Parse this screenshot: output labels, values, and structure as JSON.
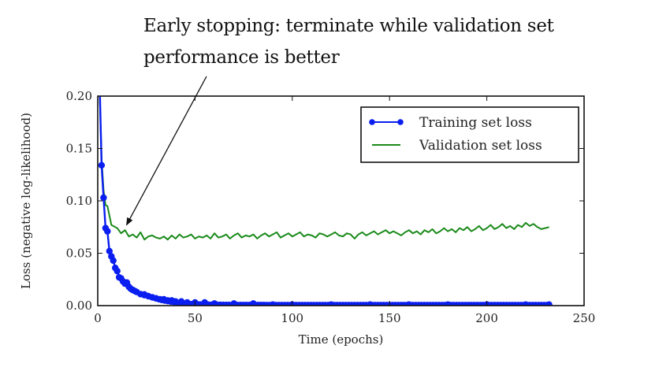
{
  "chart_data": {
    "type": "line",
    "title": "",
    "annotation": {
      "line1": "Early stopping: terminate while validation set",
      "line2": "performance is better",
      "arrow_target": {
        "x": 14,
        "y": 0.074
      }
    },
    "xlabel": "Time (epochs)",
    "ylabel": "Loss (negative log-likelihood)",
    "xlim": [
      0,
      250
    ],
    "ylim": [
      0.0,
      0.2
    ],
    "xticks": [
      0,
      50,
      100,
      150,
      200,
      250
    ],
    "xtick_labels": [
      "0",
      "50",
      "100",
      "150",
      "200",
      "250"
    ],
    "yticks": [
      0.0,
      0.05,
      0.1,
      0.15,
      0.2
    ],
    "ytick_labels": [
      "0.00",
      "0.05",
      "0.10",
      "0.15",
      "0.20"
    ],
    "grid": false,
    "legend": {
      "position": "top-right"
    },
    "series": [
      {
        "name": "Training set loss",
        "color": "#0a1ef0",
        "marker": "circle",
        "x": [
          1,
          2,
          3,
          4,
          5,
          6,
          7,
          8,
          9,
          10,
          11,
          12,
          13,
          14,
          15,
          16,
          17,
          18,
          19,
          20,
          22,
          24,
          26,
          28,
          30,
          32,
          34,
          36,
          38,
          40,
          43,
          46,
          50,
          55,
          60,
          70,
          80,
          90,
          100,
          120,
          140,
          160,
          180,
          200,
          220,
          232
        ],
        "values": [
          0.21,
          0.134,
          0.103,
          0.074,
          0.071,
          0.052,
          0.047,
          0.043,
          0.036,
          0.033,
          0.027,
          0.026,
          0.023,
          0.021,
          0.022,
          0.018,
          0.016,
          0.015,
          0.014,
          0.013,
          0.011,
          0.01,
          0.009,
          0.008,
          0.007,
          0.006,
          0.006,
          0.005,
          0.005,
          0.004,
          0.004,
          0.003,
          0.003,
          0.003,
          0.002,
          0.002,
          0.002,
          0.001,
          0.001,
          0.001,
          0.001,
          0.001,
          0.001,
          0.001,
          0.001,
          0.001
        ]
      },
      {
        "name": "Validation set loss",
        "color": "#1a8a1a",
        "marker": "none",
        "x": [
          1,
          2,
          3,
          4,
          5,
          6,
          7,
          8,
          10,
          12,
          14,
          16,
          18,
          20,
          22,
          24,
          26,
          28,
          30,
          32,
          34,
          36,
          38,
          40,
          42,
          44,
          46,
          48,
          50,
          52,
          54,
          56,
          58,
          60,
          62,
          64,
          66,
          68,
          70,
          72,
          74,
          76,
          78,
          80,
          82,
          84,
          86,
          88,
          90,
          92,
          94,
          96,
          98,
          100,
          102,
          104,
          106,
          108,
          110,
          112,
          114,
          116,
          118,
          120,
          122,
          124,
          126,
          128,
          130,
          132,
          134,
          136,
          138,
          140,
          142,
          144,
          146,
          148,
          150,
          152,
          154,
          156,
          158,
          160,
          162,
          164,
          166,
          168,
          170,
          172,
          174,
          176,
          178,
          180,
          182,
          184,
          186,
          188,
          190,
          192,
          194,
          196,
          198,
          200,
          202,
          204,
          206,
          208,
          210,
          212,
          214,
          216,
          218,
          220,
          222,
          224,
          226,
          228,
          230,
          232
        ],
        "values": [
          0.2,
          0.14,
          0.11,
          0.096,
          0.095,
          0.086,
          0.077,
          0.076,
          0.074,
          0.069,
          0.072,
          0.066,
          0.068,
          0.065,
          0.07,
          0.063,
          0.066,
          0.067,
          0.065,
          0.064,
          0.066,
          0.063,
          0.067,
          0.064,
          0.068,
          0.065,
          0.066,
          0.068,
          0.064,
          0.066,
          0.065,
          0.067,
          0.064,
          0.069,
          0.065,
          0.066,
          0.068,
          0.064,
          0.067,
          0.069,
          0.065,
          0.067,
          0.066,
          0.068,
          0.064,
          0.067,
          0.069,
          0.066,
          0.068,
          0.07,
          0.065,
          0.067,
          0.069,
          0.066,
          0.068,
          0.07,
          0.066,
          0.068,
          0.067,
          0.065,
          0.069,
          0.068,
          0.066,
          0.068,
          0.07,
          0.067,
          0.066,
          0.069,
          0.068,
          0.064,
          0.068,
          0.07,
          0.067,
          0.069,
          0.071,
          0.068,
          0.07,
          0.072,
          0.069,
          0.071,
          0.069,
          0.067,
          0.07,
          0.072,
          0.069,
          0.071,
          0.068,
          0.072,
          0.07,
          0.073,
          0.069,
          0.071,
          0.074,
          0.071,
          0.073,
          0.07,
          0.074,
          0.072,
          0.075,
          0.071,
          0.073,
          0.076,
          0.072,
          0.074,
          0.077,
          0.073,
          0.075,
          0.078,
          0.074,
          0.076,
          0.073,
          0.077,
          0.075,
          0.079,
          0.076,
          0.078,
          0.075,
          0.073,
          0.074,
          0.075
        ]
      }
    ]
  }
}
